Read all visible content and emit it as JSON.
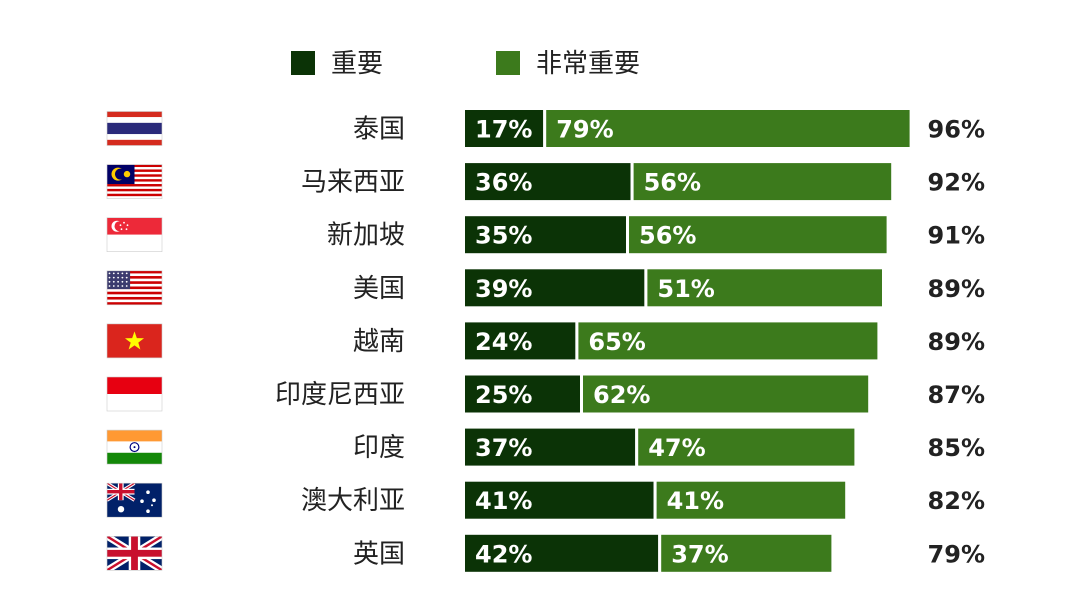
{
  "chart_data": {
    "type": "bar",
    "stacked": true,
    "orientation": "horizontal",
    "title": "",
    "xlabel": "",
    "ylabel": "",
    "xlim": [
      0,
      100
    ],
    "grid": false,
    "legend_position": "top",
    "categories": [
      "泰国",
      "马来西亚",
      "新加坡",
      "美国",
      "越南",
      "印度尼西亚",
      "印度",
      "澳大利亚",
      "英国"
    ],
    "flags": [
      "thailand",
      "malaysia",
      "singapore",
      "usa",
      "vietnam",
      "indonesia",
      "india",
      "australia",
      "uk"
    ],
    "series": [
      {
        "name": "重要",
        "color": "#0b3306",
        "values": [
          17,
          36,
          35,
          39,
          24,
          25,
          37,
          41,
          42
        ]
      },
      {
        "name": "非常重要",
        "color": "#3c7a1c",
        "values": [
          79,
          56,
          56,
          51,
          65,
          62,
          47,
          41,
          37
        ]
      }
    ],
    "value_labels": [
      [
        "17%",
        "36%",
        "35%",
        "39%",
        "24%",
        "25%",
        "37%",
        "41%",
        "42%"
      ],
      [
        "79%",
        "56%",
        "56%",
        "51%",
        "65%",
        "62%",
        "47%",
        "41%",
        "37%"
      ]
    ],
    "totals": [
      96,
      92,
      91,
      89,
      89,
      87,
      85,
      82,
      79
    ],
    "total_labels": [
      "96%",
      "92%",
      "91%",
      "89%",
      "89%",
      "87%",
      "85%",
      "82%",
      "79%"
    ]
  }
}
